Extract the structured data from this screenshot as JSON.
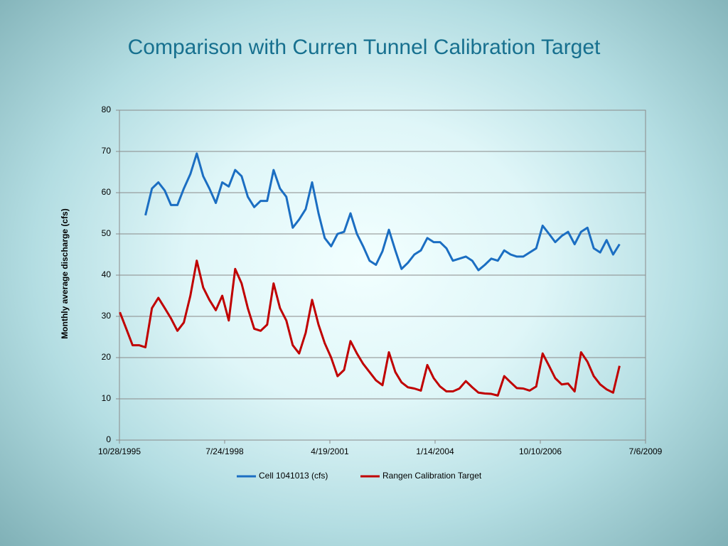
{
  "chart_data": {
    "type": "line",
    "title": "Comparison with Curren Tunnel Calibration Target",
    "y_label": "Monthly average discharge (cfs)",
    "x": [
      "11/1/1995",
      "1/1/1996",
      "3/1/1996",
      "5/1/1996",
      "7/1/1996",
      "9/1/1996",
      "11/1/1996",
      "1/1/1997",
      "3/1/1997",
      "5/1/1997",
      "7/1/1997",
      "9/1/1997",
      "11/1/1997",
      "1/1/1998",
      "3/1/1998",
      "5/1/1998",
      "7/1/1998",
      "9/1/1998",
      "11/1/1998",
      "1/1/1999",
      "3/1/1999",
      "5/1/1999",
      "7/1/1999",
      "9/1/1999",
      "11/1/1999",
      "1/1/2000",
      "3/1/2000",
      "5/1/2000",
      "7/1/2000",
      "9/1/2000",
      "11/1/2000",
      "1/1/2001",
      "3/1/2001",
      "5/1/2001",
      "7/1/2001",
      "9/1/2001",
      "11/1/2001",
      "1/1/2002",
      "3/1/2002",
      "5/1/2002",
      "7/1/2002",
      "9/1/2002",
      "11/1/2002",
      "1/1/2003",
      "3/1/2003",
      "5/1/2003",
      "7/1/2003",
      "9/1/2003",
      "11/1/2003",
      "1/1/2004",
      "3/1/2004",
      "5/1/2004",
      "7/1/2004",
      "9/1/2004",
      "11/1/2004",
      "1/1/2005",
      "3/1/2005",
      "5/1/2005",
      "7/1/2005",
      "9/1/2005",
      "11/1/2005",
      "1/1/2006",
      "3/1/2006",
      "5/1/2006",
      "7/1/2006",
      "9/1/2006",
      "11/1/2006",
      "1/1/2007",
      "3/1/2007",
      "5/1/2007",
      "7/1/2007",
      "9/1/2007",
      "11/1/2007",
      "1/1/2008",
      "3/1/2008",
      "5/1/2008",
      "7/1/2008",
      "9/1/2008",
      "11/1/2008"
    ],
    "series": [
      {
        "name": "Cell 1041013 (cfs)",
        "color": "#1b6ec2",
        "values": [
          null,
          null,
          null,
          null,
          54.5,
          61,
          62.5,
          60.5,
          57,
          57,
          61,
          64.5,
          69.5,
          64,
          61,
          57.5,
          62.5,
          61.5,
          65.5,
          64,
          59,
          56.5,
          58,
          58,
          65.5,
          61,
          59,
          51.5,
          53.5,
          56,
          62.5,
          55,
          49,
          47,
          50,
          50.5,
          55,
          50,
          47,
          43.5,
          42.5,
          45.8,
          51,
          46,
          41.5,
          43,
          45,
          46,
          49,
          48,
          48,
          46.5,
          43.5,
          44,
          44.5,
          43.5,
          41.2,
          42.5,
          44,
          43.5,
          46,
          45,
          44.5,
          44.5,
          45.5,
          46.5,
          52,
          50,
          48,
          49.5,
          50.5,
          47.5,
          50.5,
          51.5,
          46.5,
          45.5,
          48.5,
          45,
          47.5
        ]
      },
      {
        "name": "Rangen Calibration Target",
        "color": "#c00000",
        "values": [
          31,
          27,
          23,
          23,
          22.5,
          32,
          34.5,
          32,
          29.5,
          26.5,
          28.5,
          35,
          43.5,
          37,
          34,
          31.5,
          35,
          29,
          41.5,
          38,
          32,
          27,
          26.5,
          28,
          38,
          32,
          29,
          23,
          21,
          26,
          34,
          28,
          23.5,
          20,
          15.5,
          17,
          24,
          21,
          18.5,
          16.5,
          14.5,
          13.3,
          21.3,
          16.5,
          14,
          12.8,
          12.5,
          12,
          18.2,
          15,
          13,
          11.8,
          11.8,
          12.5,
          14.3,
          12.8,
          11.5,
          11.3,
          11.2,
          10.8,
          15.5,
          14,
          12.6,
          12.5,
          12,
          13,
          21,
          18,
          15,
          13.5,
          13.7,
          11.8,
          21.3,
          19,
          15.5,
          13.5,
          12.3,
          11.5,
          18
        ]
      }
    ],
    "xlim": [
      "10/28/1995",
      "7/6/2009"
    ],
    "xticks": [
      "10/28/1995",
      "7/24/1998",
      "4/19/2001",
      "1/14/2004",
      "10/10/2006",
      "7/6/2009"
    ],
    "ylim": [
      0,
      80
    ],
    "yticks": [
      0,
      10,
      20,
      30,
      40,
      50,
      60,
      70,
      80
    ],
    "grid": true,
    "legend": "bottom"
  }
}
